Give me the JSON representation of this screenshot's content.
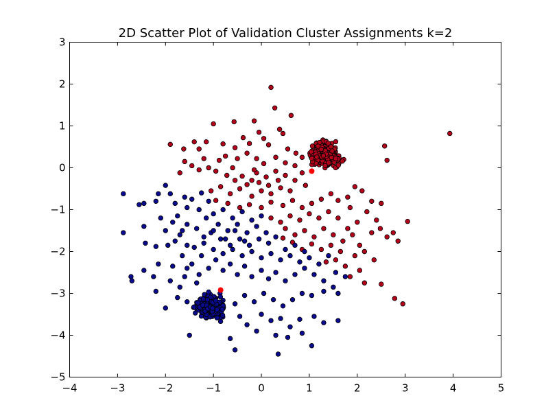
{
  "chart_data": {
    "type": "scatter",
    "title": "2D Scatter Plot of Validation Cluster Assignments k=2",
    "xlabel": "",
    "ylabel": "",
    "xlim": [
      -4,
      5
    ],
    "ylim": [
      -5,
      3
    ],
    "xticks": [
      "−4",
      "−3",
      "−2",
      "−1",
      "0",
      "1",
      "2",
      "3",
      "4",
      "5"
    ],
    "yticks": [
      "3",
      "2",
      "1",
      "0",
      "−1",
      "−2",
      "−3",
      "−4",
      "−5"
    ],
    "grid": false,
    "legend": "none",
    "series": [
      {
        "color": "#b2001a",
        "edge": "#000000",
        "points": [
          [
            0.2,
            1.92
          ],
          [
            0.28,
            1.43
          ],
          [
            0.62,
            1.25
          ],
          [
            -0.57,
            1.1
          ],
          [
            -1.0,
            1.05
          ],
          [
            3.93,
            0.82
          ],
          [
            -0.15,
            1.12
          ],
          [
            0.45,
            0.82
          ],
          [
            0.38,
            0.92
          ],
          [
            -0.05,
            0.85
          ],
          [
            0.05,
            0.7
          ],
          [
            -0.38,
            0.72
          ],
          [
            -0.8,
            0.57
          ],
          [
            -1.9,
            0.56
          ],
          [
            -1.4,
            0.62
          ],
          [
            -1.62,
            0.45
          ],
          [
            2.57,
            0.52
          ],
          [
            2.62,
            0.18
          ],
          [
            -1.3,
            0.45
          ],
          [
            -1.15,
            0.62
          ],
          [
            -0.55,
            0.48
          ],
          [
            -0.25,
            0.58
          ],
          [
            0.15,
            0.55
          ],
          [
            0.55,
            0.45
          ],
          [
            0.72,
            0.35
          ],
          [
            -0.75,
            0.28
          ],
          [
            -0.88,
            0.18
          ],
          [
            -1.2,
            0.22
          ],
          [
            -1.6,
            0.15
          ],
          [
            -1.45,
            0.05
          ],
          [
            -1.1,
            0.0
          ],
          [
            -1.7,
            -0.12
          ],
          [
            -1.3,
            -0.05
          ],
          [
            -0.95,
            -0.08
          ],
          [
            -0.72,
            -0.18
          ],
          [
            -0.6,
            0.0
          ],
          [
            -0.4,
            -0.2
          ],
          [
            -0.2,
            -0.3
          ],
          [
            -0.1,
            -0.12
          ],
          [
            0.1,
            -0.22
          ],
          [
            0.3,
            -0.08
          ],
          [
            0.5,
            -0.18
          ],
          [
            0.7,
            -0.3
          ],
          [
            0.85,
            -0.12
          ],
          [
            0.92,
            -0.42
          ],
          [
            0.6,
            -0.55
          ],
          [
            0.4,
            -0.48
          ],
          [
            0.2,
            -0.62
          ],
          [
            0.0,
            -0.55
          ],
          [
            -0.2,
            -0.68
          ],
          [
            -0.45,
            -0.5
          ],
          [
            -0.65,
            -0.62
          ],
          [
            -0.85,
            -0.45
          ],
          [
            -1.05,
            -0.55
          ],
          [
            -0.95,
            -0.78
          ],
          [
            -0.7,
            -0.85
          ],
          [
            -0.45,
            -0.95
          ],
          [
            -0.25,
            -0.88
          ],
          [
            0.0,
            -0.95
          ],
          [
            0.2,
            -0.82
          ],
          [
            0.45,
            -0.9
          ],
          [
            0.65,
            -0.78
          ],
          [
            0.85,
            -0.95
          ],
          [
            1.05,
            -0.85
          ],
          [
            1.25,
            -0.75
          ],
          [
            1.45,
            -0.62
          ],
          [
            1.6,
            -0.78
          ],
          [
            1.8,
            -0.7
          ],
          [
            1.95,
            -0.45
          ],
          [
            2.1,
            -0.55
          ],
          [
            1.85,
            -0.95
          ],
          [
            2.3,
            -0.8
          ],
          [
            2.2,
            -1.05
          ],
          [
            2.4,
            -1.25
          ],
          [
            2.5,
            -0.85
          ],
          [
            2.3,
            -1.55
          ],
          [
            2.48,
            -1.45
          ],
          [
            2.62,
            -1.65
          ],
          [
            2.75,
            -1.55
          ],
          [
            2.85,
            -1.75
          ],
          [
            3.05,
            -1.28
          ],
          [
            2.0,
            -1.3
          ],
          [
            1.8,
            -1.45
          ],
          [
            1.6,
            -1.2
          ],
          [
            1.4,
            -1.05
          ],
          [
            1.2,
            -1.2
          ],
          [
            1.0,
            -1.1
          ],
          [
            0.8,
            -1.25
          ],
          [
            0.6,
            -1.15
          ],
          [
            0.4,
            -1.3
          ],
          [
            0.2,
            -1.2
          ],
          [
            0.5,
            -1.45
          ],
          [
            0.7,
            -1.6
          ],
          [
            0.9,
            -1.5
          ],
          [
            1.1,
            -1.65
          ],
          [
            1.3,
            -1.45
          ],
          [
            1.5,
            -1.6
          ],
          [
            1.7,
            -1.75
          ],
          [
            1.9,
            -1.6
          ],
          [
            2.05,
            -1.85
          ],
          [
            1.65,
            -2.0
          ],
          [
            1.45,
            -1.85
          ],
          [
            1.25,
            -1.95
          ],
          [
            1.05,
            -1.82
          ],
          [
            0.85,
            -1.95
          ],
          [
            0.65,
            -1.78
          ],
          [
            0.45,
            -1.68
          ],
          [
            1.55,
            -2.2
          ],
          [
            1.75,
            -2.35
          ],
          [
            1.35,
            -2.25
          ],
          [
            1.95,
            -2.1
          ],
          [
            2.15,
            -2.0
          ],
          [
            2.35,
            -2.2
          ],
          [
            2.05,
            -2.45
          ],
          [
            1.85,
            -2.6
          ],
          [
            2.15,
            -2.75
          ],
          [
            2.5,
            -2.78
          ],
          [
            2.78,
            -3.12
          ],
          [
            2.95,
            -3.25
          ],
          [
            -0.3,
            -0.4
          ],
          [
            -0.05,
            -0.35
          ],
          [
            0.15,
            -0.42
          ],
          [
            0.35,
            -0.3
          ],
          [
            -0.55,
            -0.3
          ],
          [
            -0.15,
            -0.05
          ],
          [
            0.05,
            0.1
          ],
          [
            0.3,
            0.25
          ],
          [
            0.5,
            0.12
          ],
          [
            0.7,
            0.05
          ],
          [
            0.85,
            0.25
          ],
          [
            -0.3,
            0.35
          ],
          [
            -0.5,
            0.22
          ],
          [
            -0.1,
            0.22
          ]
        ],
        "blob": {
          "cx": 1.32,
          "cy": 0.32,
          "rx": 0.52,
          "ry": 0.45,
          "n": 330
        }
      },
      {
        "color": "#0a0a8c",
        "edge": "#000000",
        "points": [
          [
            -2.88,
            -0.62
          ],
          [
            -2.88,
            -1.55
          ],
          [
            -2.55,
            -0.88
          ],
          [
            -2.45,
            -0.85
          ],
          [
            -2.45,
            -1.4
          ],
          [
            -2.42,
            -1.8
          ],
          [
            -2.15,
            -0.62
          ],
          [
            -2.2,
            -0.8
          ],
          [
            -2.0,
            -0.42
          ],
          [
            -1.9,
            -0.62
          ],
          [
            -2.1,
            -1.2
          ],
          [
            -2.0,
            -1.5
          ],
          [
            -1.95,
            -1.85
          ],
          [
            -2.2,
            -1.88
          ],
          [
            -2.15,
            -2.3
          ],
          [
            -2.45,
            -2.45
          ],
          [
            -2.25,
            -2.6
          ],
          [
            -2.72,
            -2.6
          ],
          [
            -2.7,
            -2.7
          ],
          [
            -2.2,
            -2.95
          ],
          [
            -1.9,
            -2.7
          ],
          [
            -1.6,
            -2.6
          ],
          [
            -2.0,
            -3.35
          ],
          [
            -1.75,
            -3.1
          ],
          [
            -1.85,
            -2.35
          ],
          [
            -1.65,
            -2.1
          ],
          [
            -1.55,
            -1.85
          ],
          [
            -1.7,
            -1.6
          ],
          [
            -1.55,
            -1.35
          ],
          [
            -1.75,
            -1.15
          ],
          [
            -1.55,
            -0.95
          ],
          [
            -1.45,
            -0.75
          ],
          [
            -1.25,
            -0.6
          ],
          [
            -1.1,
            -0.8
          ],
          [
            -1.3,
            -1.0
          ],
          [
            -1.15,
            -1.2
          ],
          [
            -1.35,
            -1.45
          ],
          [
            -1.2,
            -1.65
          ],
          [
            -1.4,
            -1.9
          ],
          [
            -1.25,
            -2.1
          ],
          [
            -1.45,
            -2.3
          ],
          [
            -1.3,
            -2.55
          ],
          [
            -1.1,
            -2.4
          ],
          [
            -0.95,
            -2.2
          ],
          [
            -0.8,
            -2.45
          ],
          [
            -0.65,
            -2.3
          ],
          [
            -0.5,
            -2.55
          ],
          [
            -0.35,
            -2.35
          ],
          [
            -0.2,
            -2.6
          ],
          [
            0.0,
            -2.45
          ],
          [
            0.15,
            -2.65
          ],
          [
            0.3,
            -2.5
          ],
          [
            0.5,
            -2.7
          ],
          [
            0.7,
            -2.55
          ],
          [
            0.9,
            -2.4
          ],
          [
            1.1,
            -2.55
          ],
          [
            1.3,
            -2.7
          ],
          [
            1.5,
            -2.85
          ],
          [
            1.55,
            -2.5
          ],
          [
            1.75,
            -2.6
          ],
          [
            1.6,
            -3.0
          ],
          [
            1.3,
            -2.95
          ],
          [
            1.05,
            -3.05
          ],
          [
            0.85,
            -3.0
          ],
          [
            0.65,
            -3.15
          ],
          [
            0.45,
            -3.3
          ],
          [
            0.25,
            -3.15
          ],
          [
            0.05,
            -3.0
          ],
          [
            -0.15,
            -3.2
          ],
          [
            -0.35,
            -3.05
          ],
          [
            -0.55,
            -3.25
          ],
          [
            0.0,
            -3.5
          ],
          [
            0.2,
            -3.65
          ],
          [
            0.4,
            -3.6
          ],
          [
            0.6,
            -3.8
          ],
          [
            0.8,
            -3.62
          ],
          [
            1.1,
            -3.55
          ],
          [
            1.3,
            -3.7
          ],
          [
            1.6,
            -3.65
          ],
          [
            0.3,
            -4.0
          ],
          [
            0.55,
            -4.05
          ],
          [
            0.85,
            -3.95
          ],
          [
            1.05,
            -4.25
          ],
          [
            0.35,
            -4.45
          ],
          [
            -0.55,
            -4.35
          ],
          [
            -0.65,
            -4.08
          ],
          [
            -1.5,
            -4.0
          ],
          [
            -0.3,
            -3.75
          ],
          [
            -0.1,
            -3.9
          ],
          [
            -0.45,
            -3.55
          ],
          [
            -1.0,
            -1.1
          ],
          [
            -0.8,
            -1.0
          ],
          [
            -0.6,
            -1.2
          ],
          [
            -0.4,
            -1.05
          ],
          [
            -0.2,
            -1.25
          ],
          [
            0.0,
            -1.15
          ],
          [
            -0.9,
            -1.35
          ],
          [
            -0.7,
            -1.5
          ],
          [
            -0.5,
            -1.35
          ],
          [
            -0.3,
            -1.55
          ],
          [
            -0.1,
            -1.4
          ],
          [
            0.1,
            -1.55
          ],
          [
            0.3,
            -1.65
          ],
          [
            0.15,
            -1.8
          ],
          [
            -0.05,
            -1.7
          ],
          [
            -0.25,
            -1.85
          ],
          [
            -0.45,
            -1.7
          ],
          [
            -0.65,
            -1.85
          ],
          [
            -0.85,
            -1.7
          ],
          [
            -1.05,
            -1.55
          ],
          [
            -1.0,
            -1.95
          ],
          [
            -0.8,
            -2.05
          ],
          [
            -0.6,
            -1.95
          ],
          [
            -0.4,
            -2.1
          ],
          [
            -0.2,
            -2.0
          ],
          [
            0.0,
            -2.15
          ],
          [
            0.2,
            -2.05
          ],
          [
            0.4,
            -2.2
          ],
          [
            0.6,
            -2.1
          ],
          [
            0.8,
            -2.25
          ],
          [
            1.0,
            -2.15
          ],
          [
            1.2,
            -2.3
          ],
          [
            1.4,
            -2.1
          ],
          [
            0.5,
            -1.95
          ],
          [
            0.7,
            -1.85
          ],
          [
            0.9,
            -2.0
          ],
          [
            -1.6,
            -0.7
          ],
          [
            -1.8,
            -0.85
          ],
          [
            -1.85,
            -1.3
          ],
          [
            -1.65,
            -1.5
          ],
          [
            -1.8,
            -1.75
          ],
          [
            -1.55,
            -2.4
          ],
          [
            -1.7,
            -2.85
          ],
          [
            -1.55,
            -3.2
          ],
          [
            -1.35,
            -2.75
          ],
          [
            -1.2,
            -1.8
          ],
          [
            -1.0,
            -1.5
          ],
          [
            -0.75,
            -1.7
          ],
          [
            -0.55,
            -1.5
          ],
          [
            -0.35,
            -1.75
          ]
        ],
        "blob": {
          "cx": -1.05,
          "cy": -3.3,
          "rx": 0.48,
          "ry": 0.42,
          "n": 300
        }
      },
      {
        "color": "#ff0000",
        "edge": "#ff0000",
        "points": [
          [
            1.05,
            -0.08
          ],
          [
            -0.85,
            -2.92
          ]
        ]
      }
    ]
  }
}
